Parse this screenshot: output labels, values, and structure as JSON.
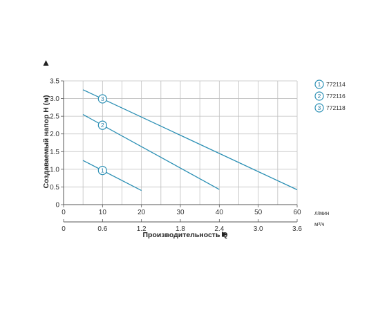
{
  "chart_data": {
    "type": "line",
    "ylabel": "Создаваемый напор H (м)",
    "xlabel": "Производительность Q",
    "y_ticks": [
      "0",
      "0.5",
      "1.0",
      "1.5",
      "2.0",
      "2.5",
      "3.0",
      "3.5"
    ],
    "ylim": [
      0,
      3.5
    ],
    "x_ticks": [
      "0",
      "10",
      "20",
      "30",
      "40",
      "50",
      "60"
    ],
    "xlim": [
      0,
      60
    ],
    "x_unit": "л/мин",
    "x2_ticks": [
      "0",
      "0.6",
      "1.2",
      "1.8",
      "2.4",
      "3.0",
      "3.6"
    ],
    "x2_unit": "м³/ч",
    "grid": true,
    "legend_position": "right",
    "series": [
      {
        "name": "772114",
        "marker": "1",
        "x": [
          0,
          20
        ],
        "y": [
          1.25,
          0.4
        ]
      },
      {
        "name": "772116",
        "marker": "2",
        "x": [
          0,
          40
        ],
        "y": [
          2.55,
          0.43
        ]
      },
      {
        "name": "772118",
        "marker": "3",
        "x": [
          0,
          60
        ],
        "y": [
          3.25,
          0.42
        ]
      }
    ],
    "line_color": "#2a8fb4",
    "grid_color": "#bfbfbf"
  }
}
